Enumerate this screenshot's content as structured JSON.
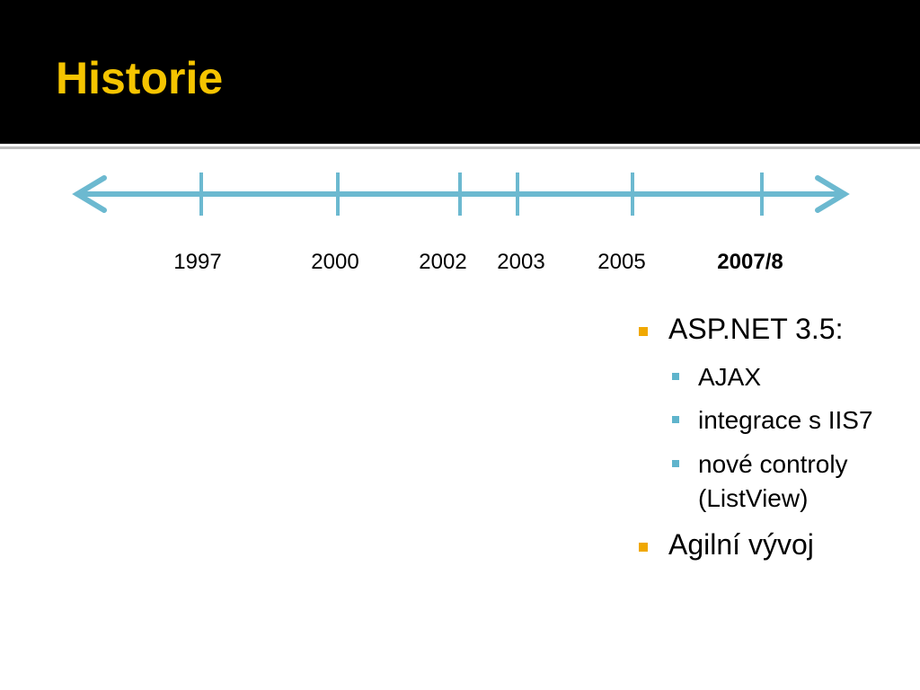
{
  "header": {
    "title": "Historie"
  },
  "timeline": {
    "labels": [
      "1997",
      "2000",
      "2002",
      "2003",
      "2005",
      "2007/8"
    ]
  },
  "bullets": [
    {
      "text": "ASP.NET 3.5:",
      "items": [
        "AJAX",
        "integrace s IIS7",
        "nové controly (ListView)"
      ]
    },
    {
      "text": "Agilní vývoj"
    }
  ]
}
